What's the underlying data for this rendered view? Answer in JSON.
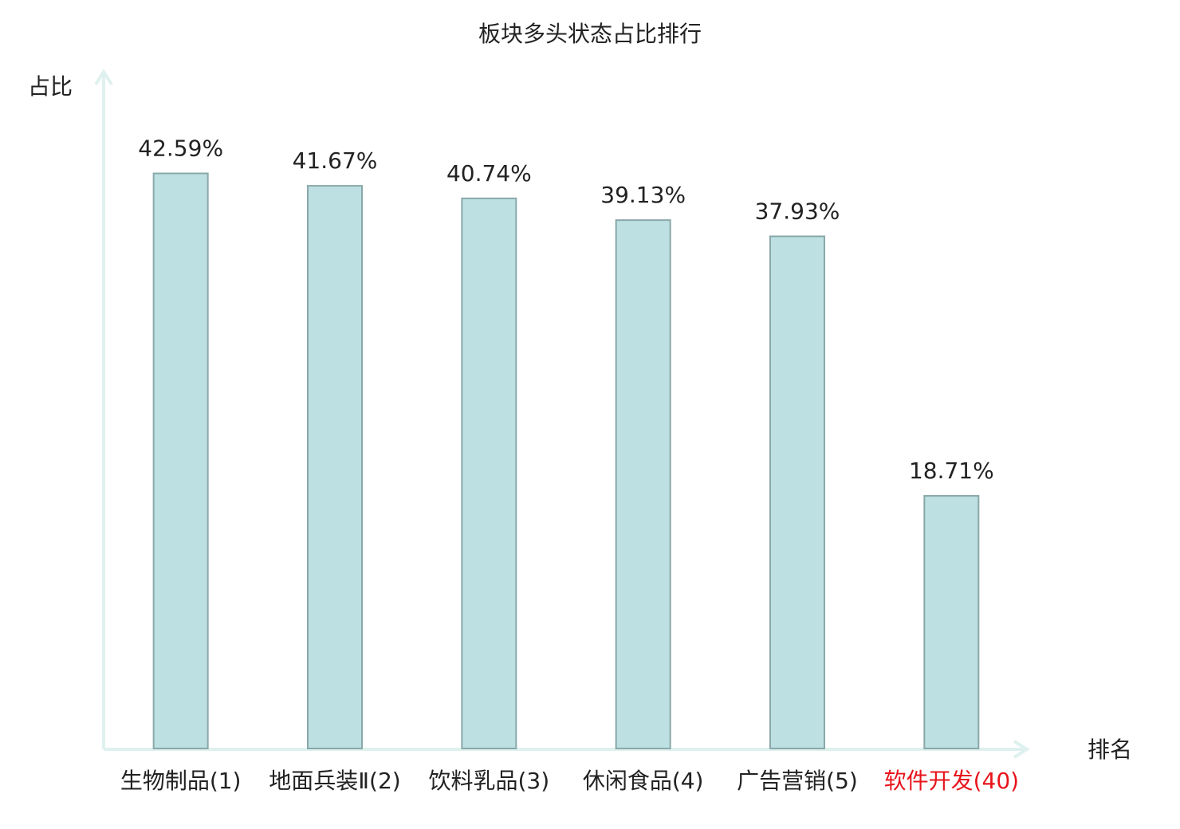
{
  "chart_data": {
    "type": "bar",
    "title": "板块多头状态占比排行",
    "y_label": "占比",
    "x_label": "排名",
    "categories": [
      "生物制品(1)",
      "地面兵装Ⅱ(2)",
      "饮料乳品(3)",
      "休闲食品(4)",
      "广告营销(5)",
      "软件开发(40)"
    ],
    "category_colors": [
      "#222222",
      "#222222",
      "#222222",
      "#222222",
      "#222222",
      "#e8141c"
    ],
    "values": [
      42.59,
      41.67,
      40.74,
      39.13,
      37.93,
      18.71
    ],
    "value_labels": [
      "42.59%",
      "41.67%",
      "40.74%",
      "39.13%",
      "37.93%",
      "18.71%"
    ],
    "color": "#bde0e3",
    "ylim": [
      0,
      50
    ]
  }
}
